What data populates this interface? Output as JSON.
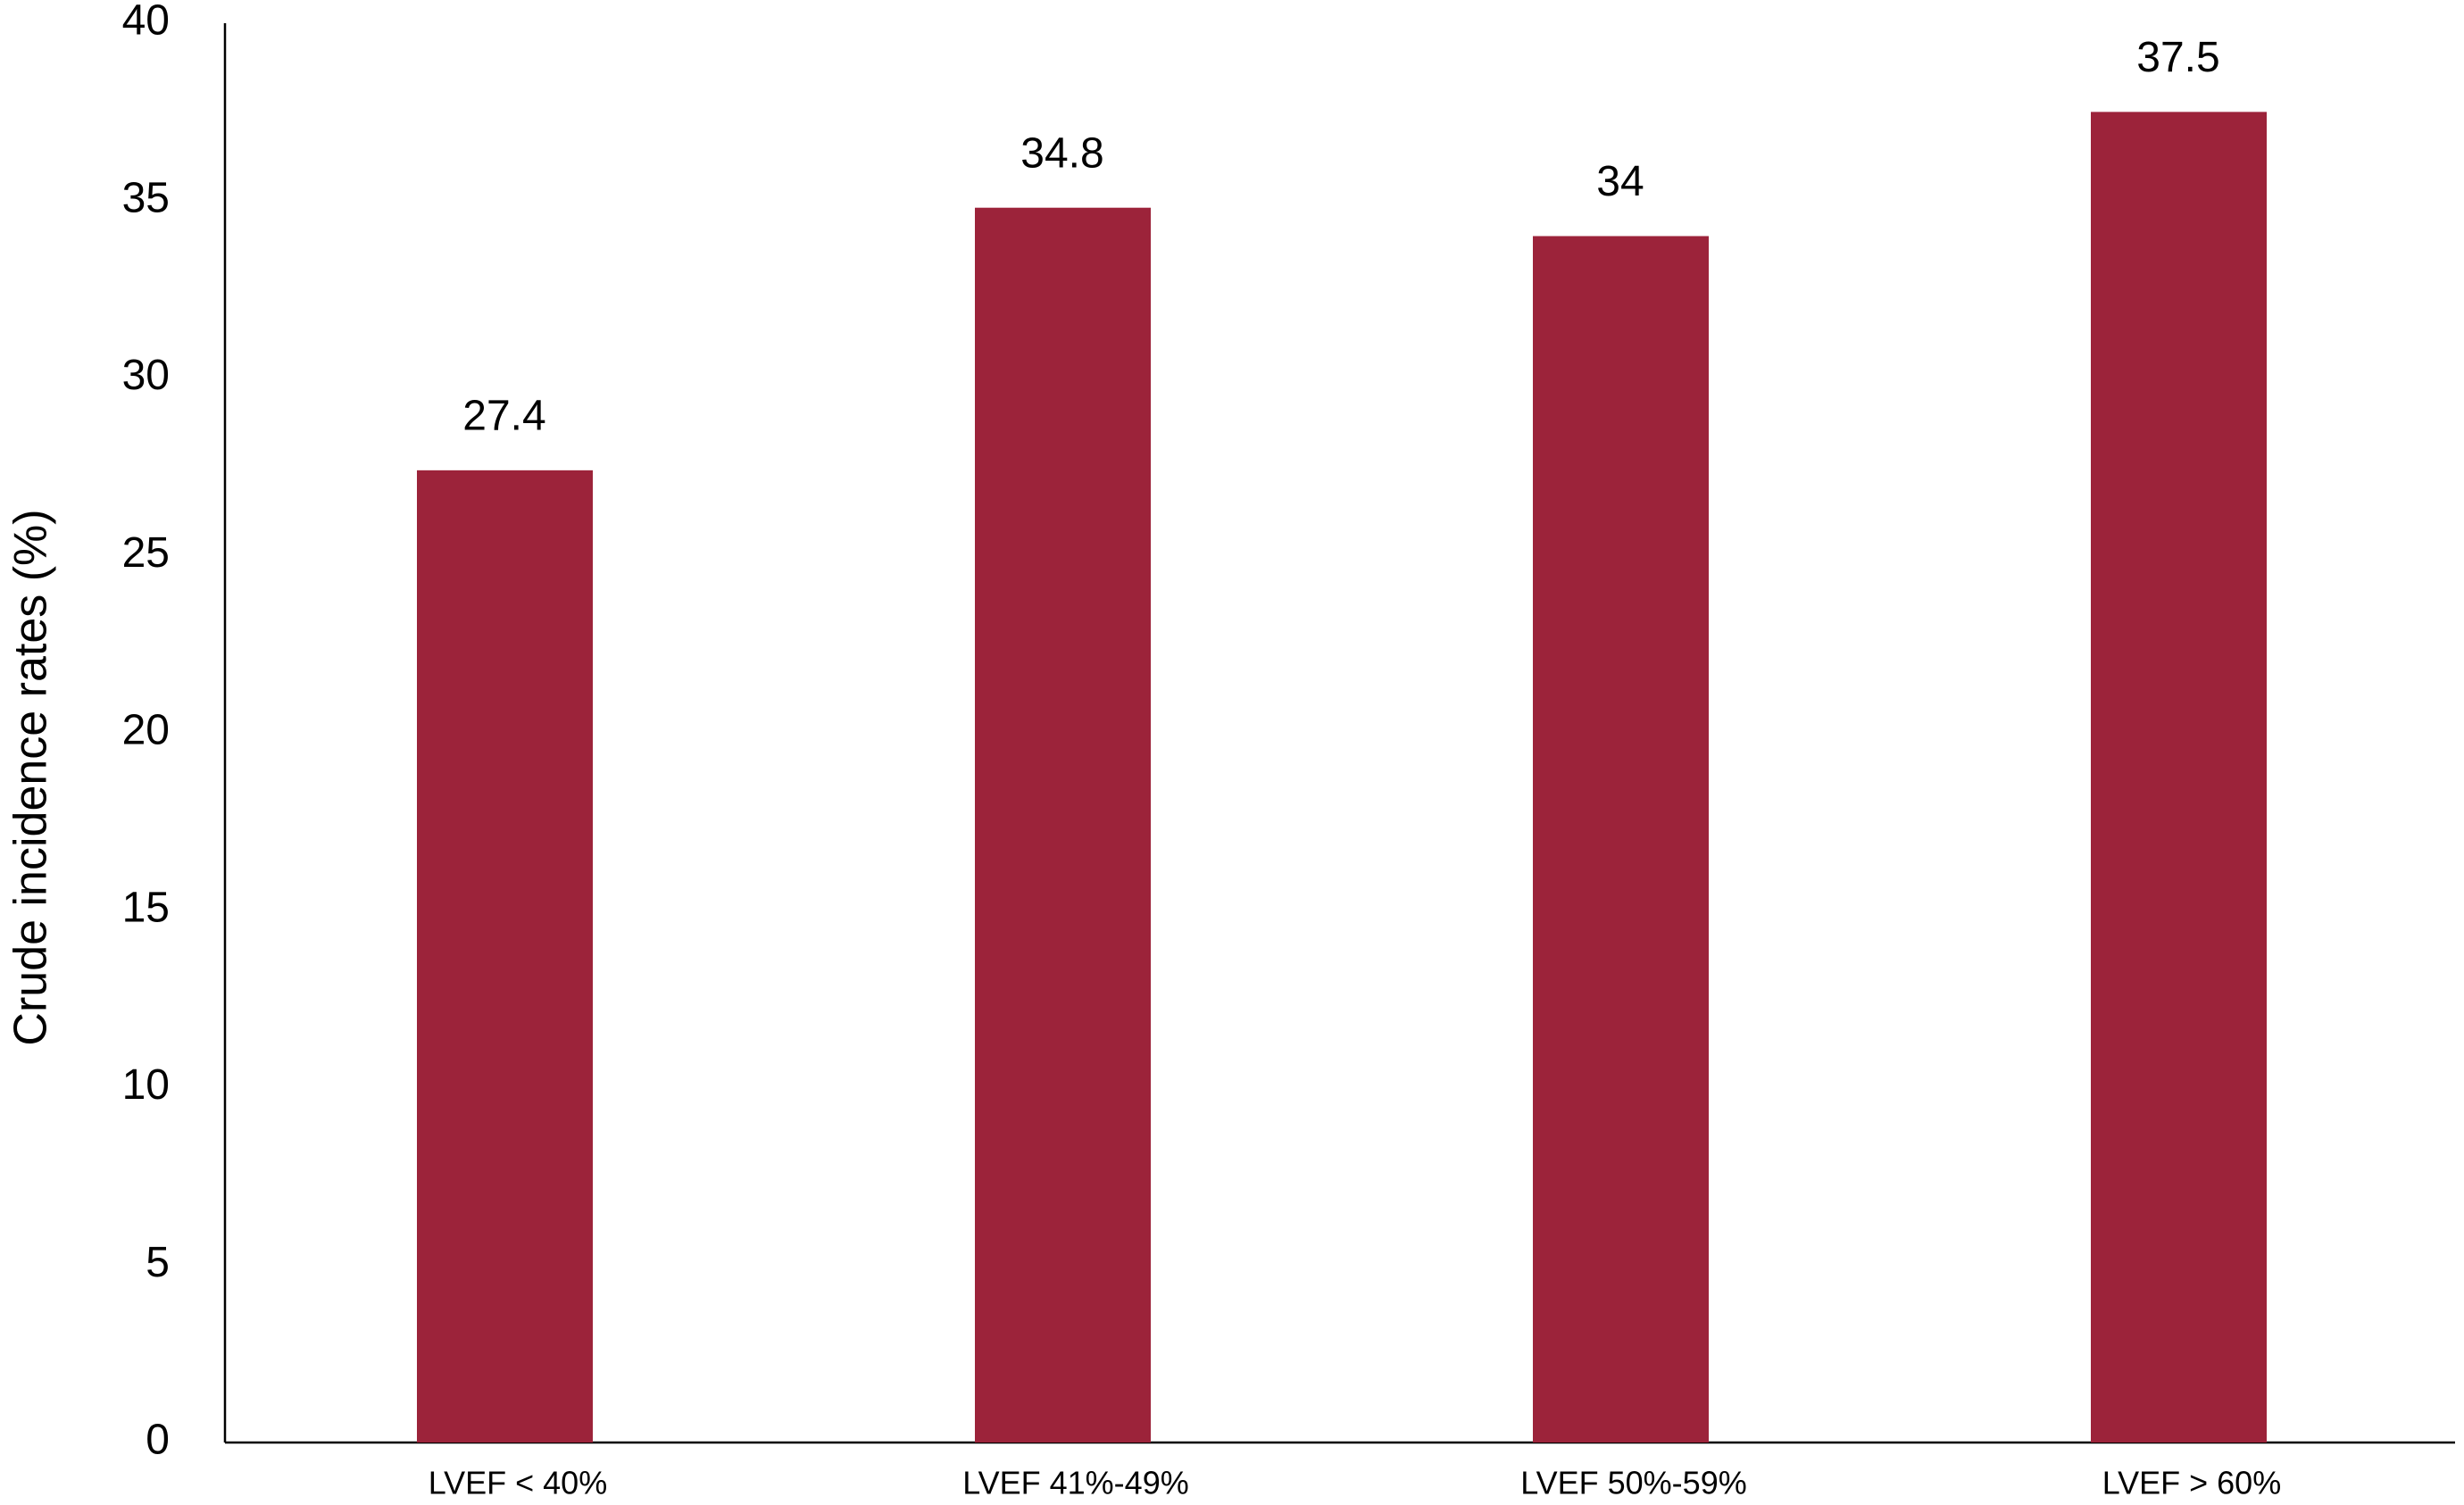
{
  "chart_data": {
    "type": "bar",
    "y_label": "Crude incidence rates (%)",
    "categories": [
      "LVEF < 40%",
      "LVEF 41%-49%",
      "LVEF 50%-59%",
      "LVEF > 60%"
    ],
    "values": [
      27.4,
      34.8,
      34,
      37.5
    ],
    "color": "#9c233a",
    "ylim": [
      0,
      40
    ],
    "yticks": [
      0,
      5,
      10,
      15,
      20,
      25,
      30,
      35,
      40
    ],
    "grid": false
  }
}
